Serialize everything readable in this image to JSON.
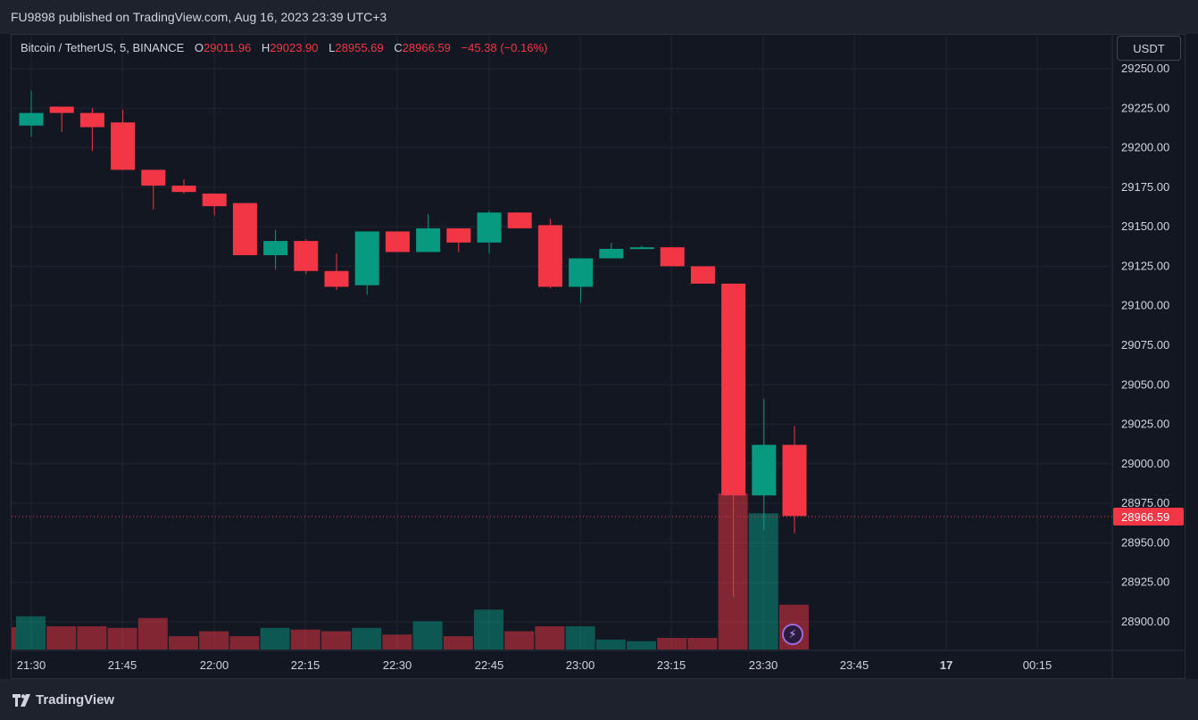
{
  "header": {
    "published": "FU9898 published on TradingView.com, Aug 16, 2023 23:39 UTC+3"
  },
  "legend": {
    "symbol": "Bitcoin / TetherUS, 5, BINANCE",
    "open_label": "O",
    "open": "29011.96",
    "high_label": "H",
    "high": "29023.90",
    "low_label": "L",
    "low": "28955.69",
    "close_label": "C",
    "close": "28966.59",
    "change": "−45.38 (−0.16%)"
  },
  "currency_button": "USDT",
  "footer": {
    "brand": "TradingView"
  },
  "colors": {
    "up": "#089981",
    "down": "#f23645",
    "background": "#131722",
    "grid": "#1f2430"
  },
  "chart_data": {
    "type": "candlestick",
    "interval_minutes": 5,
    "y_ticks": [
      "29250.00",
      "29225.00",
      "29200.00",
      "29175.00",
      "29150.00",
      "29125.00",
      "29100.00",
      "29075.00",
      "29050.00",
      "29025.00",
      "29000.00",
      "28975.00",
      "28950.00",
      "28925.00",
      "28900.00"
    ],
    "y_range": [
      28885,
      29258
    ],
    "x_ticks": [
      "21:30",
      "21:45",
      "22:00",
      "22:15",
      "22:30",
      "22:45",
      "23:00",
      "23:15",
      "23:30",
      "23:45",
      "17",
      "00:15"
    ],
    "last_price_label": "28966.59",
    "last_price": 28966.59,
    "candles": [
      {
        "time": "21:30",
        "o": 29214,
        "h": 29236,
        "l": 29207,
        "c": 29222,
        "v": 2.0
      },
      {
        "time": "21:35",
        "o": 29226,
        "h": 29225,
        "l": 29210,
        "c": 29222,
        "v": 1.4
      },
      {
        "time": "21:40",
        "o": 29222,
        "h": 29225,
        "l": 29198,
        "c": 29213,
        "v": 1.4
      },
      {
        "time": "21:45",
        "o": 29216,
        "h": 29224,
        "l": 29186,
        "c": 29186,
        "v": 1.3
      },
      {
        "time": "21:50",
        "o": 29186,
        "h": 29186,
        "l": 29161,
        "c": 29176,
        "v": 1.9
      },
      {
        "time": "21:55",
        "o": 29176,
        "h": 29180,
        "l": 29171,
        "c": 29172,
        "v": 0.8
      },
      {
        "time": "22:00",
        "o": 29171,
        "h": 29171,
        "l": 29157,
        "c": 29163,
        "v": 1.1
      },
      {
        "time": "22:05",
        "o": 29165,
        "h": 29165,
        "l": 29132,
        "c": 29132,
        "v": 0.8
      },
      {
        "time": "22:10",
        "o": 29132,
        "h": 29148,
        "l": 29123,
        "c": 29141,
        "v": 1.3
      },
      {
        "time": "22:15",
        "o": 29141,
        "h": 29142,
        "l": 29120,
        "c": 29122,
        "v": 1.2
      },
      {
        "time": "22:20",
        "o": 29122,
        "h": 29133,
        "l": 29110,
        "c": 29112,
        "v": 1.1
      },
      {
        "time": "22:25",
        "o": 29113,
        "h": 29147,
        "l": 29107,
        "c": 29147,
        "v": 1.3
      },
      {
        "time": "22:30",
        "o": 29147,
        "h": 29147,
        "l": 29134,
        "c": 29134,
        "v": 0.9
      },
      {
        "time": "22:35",
        "o": 29134,
        "h": 29158,
        "l": 29134,
        "c": 29149,
        "v": 1.7
      },
      {
        "time": "22:40",
        "o": 29149,
        "h": 29149,
        "l": 29134,
        "c": 29140,
        "v": 0.8
      },
      {
        "time": "22:45",
        "o": 29140,
        "h": 29160,
        "l": 29133,
        "c": 29159,
        "v": 2.4
      },
      {
        "time": "22:50",
        "o": 29159,
        "h": 29159,
        "l": 29149,
        "c": 29149,
        "v": 1.1
      },
      {
        "time": "22:55",
        "o": 29151,
        "h": 29155,
        "l": 29111,
        "c": 29112,
        "v": 1.4
      },
      {
        "time": "23:00",
        "o": 29112,
        "h": 29130,
        "l": 29102,
        "c": 29130,
        "v": 1.4
      },
      {
        "time": "23:05",
        "o": 29130,
        "h": 29140,
        "l": 29130,
        "c": 29136,
        "v": 0.6
      },
      {
        "time": "23:10",
        "o": 29136,
        "h": 29138,
        "l": 29136,
        "c": 29137,
        "v": 0.5
      },
      {
        "time": "23:15",
        "o": 29137,
        "h": 29137,
        "l": 29125,
        "c": 29125,
        "v": 0.7
      },
      {
        "time": "23:20",
        "o": 29125,
        "h": 29125,
        "l": 29114,
        "c": 29114,
        "v": 0.7
      },
      {
        "time": "23:25",
        "o": 29114,
        "h": 29114,
        "l": 28916,
        "c": 28980,
        "v": 9.4
      },
      {
        "time": "23:30",
        "o": 28980,
        "h": 29041,
        "l": 28958,
        "c": 29012,
        "v": 8.2
      },
      {
        "time": "23:35",
        "o": 29012,
        "h": 29024,
        "l": 28956,
        "c": 28967,
        "v": 2.7
      }
    ]
  }
}
